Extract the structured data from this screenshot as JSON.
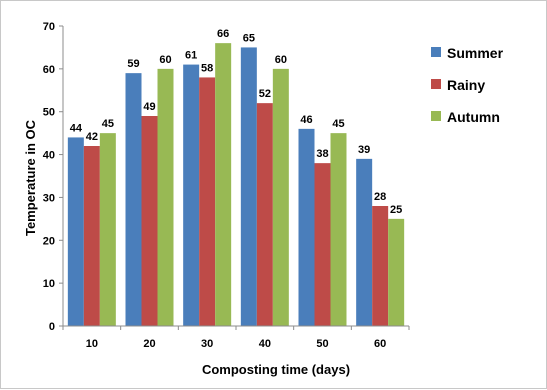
{
  "chart_data": {
    "type": "bar",
    "title": "",
    "xlabel": "Composting time (days)",
    "ylabel": "Temperature in OC",
    "categories": [
      "10",
      "20",
      "30",
      "40",
      "50",
      "60"
    ],
    "ylim": [
      0,
      70
    ],
    "yticks": [
      "0",
      "10",
      "20",
      "30",
      "40",
      "50",
      "60",
      "70"
    ],
    "grid": false,
    "legend_position": "right",
    "series": [
      {
        "name": "Summer",
        "color": "#4a7ebb",
        "values": [
          44,
          59,
          61,
          65,
          46,
          39
        ],
        "labels": [
          "44",
          "59",
          "61",
          "65",
          "46",
          "39"
        ]
      },
      {
        "name": "Rainy",
        "color": "#be4b48",
        "values": [
          42,
          49,
          58,
          52,
          38,
          28
        ],
        "labels": [
          "42",
          "49",
          "58",
          "52",
          "38",
          "28"
        ]
      },
      {
        "name": "Autumn",
        "color": "#98b954",
        "values": [
          45,
          60,
          66,
          60,
          45,
          25
        ],
        "labels": [
          "45",
          "60",
          "66",
          "60",
          "45",
          "25"
        ]
      }
    ]
  }
}
